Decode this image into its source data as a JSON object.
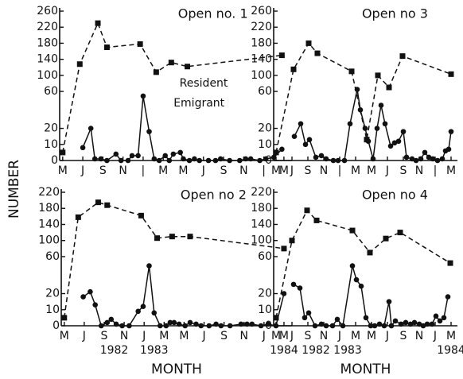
{
  "figure": {
    "y_label": "NUMBER",
    "x_label": "MONTH"
  },
  "chart_data": [
    {
      "type": "line",
      "title": "Open no. 1",
      "legend": "inside",
      "xlim": [
        -0.3,
        22.8
      ],
      "ylim": [
        0,
        260
      ],
      "yticks": [
        0,
        10,
        20,
        60,
        100,
        140,
        180,
        220,
        260
      ],
      "xticks": [
        {
          "value": 0,
          "label": "M"
        },
        {
          "value": 2,
          "label": "J"
        },
        {
          "value": 4,
          "label": "S"
        },
        {
          "value": 6,
          "label": "N"
        },
        {
          "value": 8,
          "label": "|"
        },
        {
          "value": 10,
          "label": "M"
        },
        {
          "value": 12,
          "label": "M"
        },
        {
          "value": 14,
          "label": "J"
        },
        {
          "value": 16,
          "label": "S"
        },
        {
          "value": 18,
          "label": "N"
        },
        {
          "value": 20,
          "label": "|"
        },
        {
          "value": 22,
          "label": "M"
        }
      ],
      "series": [
        {
          "name": "Resident",
          "color": "#111111",
          "style": "dashed",
          "marker": "square",
          "x": [
            0,
            1.7,
            3.5,
            4.4,
            7.7,
            9.3,
            10.8,
            12.4,
            21.8
          ],
          "values": [
            5,
            128,
            230,
            170,
            178,
            108,
            132,
            122,
            150
          ]
        },
        {
          "name": "Emigrant",
          "color": "#111111",
          "style": "solid",
          "marker": "circle",
          "x": [
            2.0,
            2.8,
            3.2,
            3.8,
            4.4,
            5.3,
            5.8,
            6.5,
            6.9,
            7.5,
            8.0,
            8.6,
            9.1,
            9.6,
            10.2,
            10.6,
            11.0,
            11.7,
            12.0,
            12.6,
            13.1,
            13.6,
            14.5,
            15.2,
            15.7,
            16.6,
            17.6,
            18.2,
            18.7,
            19.6,
            20.2,
            21.0,
            21.8
          ],
          "values": [
            8,
            20,
            1,
            1,
            0,
            4,
            0,
            0,
            3,
            3,
            55,
            18,
            1,
            0,
            3,
            0,
            4,
            5,
            1,
            0,
            1,
            0,
            0,
            0,
            1,
            0,
            0,
            1,
            1,
            0,
            1,
            2,
            7
          ]
        }
      ]
    },
    {
      "type": "line",
      "title": "Open no 3",
      "xlim": [
        -0.3,
        22.8
      ],
      "ylim": [
        0,
        260
      ],
      "yticks": [
        0,
        10,
        20,
        60,
        100,
        140,
        180,
        220,
        260
      ],
      "xticks": [
        {
          "value": 0,
          "label": "M"
        },
        {
          "value": 2,
          "label": "J"
        },
        {
          "value": 4,
          "label": "S"
        },
        {
          "value": 6,
          "label": "N"
        },
        {
          "value": 8,
          "label": "|"
        },
        {
          "value": 10,
          "label": "M"
        },
        {
          "value": 12,
          "label": "M"
        },
        {
          "value": 14,
          "label": "J"
        },
        {
          "value": 16,
          "label": "S"
        },
        {
          "value": 18,
          "label": "N"
        },
        {
          "value": 20,
          "label": "|"
        },
        {
          "value": 22,
          "label": "M"
        }
      ],
      "series": [
        {
          "color": "#111111",
          "style": "dashed",
          "marker": "square",
          "x": [
            0,
            2.2,
            4.1,
            5.2,
            9.5,
            11.4,
            12.8,
            14.2,
            15.9,
            22
          ],
          "values": [
            5,
            115,
            180,
            155,
            110,
            13,
            100,
            70,
            148,
            103
          ]
        },
        {
          "color": "#111111",
          "style": "solid",
          "marker": "circle",
          "x": [
            2.3,
            3.1,
            3.7,
            4.2,
            5.0,
            5.7,
            6.3,
            7.2,
            7.8,
            8.6,
            9.3,
            10.2,
            10.6,
            11.2,
            11.6,
            12.2,
            12.7,
            13.2,
            13.7,
            14.4,
            14.9,
            15.4,
            16.0,
            16.4,
            17.1,
            17.6,
            18.2,
            18.7,
            19.2,
            19.7,
            20.3,
            20.9,
            21.3,
            21.7,
            22
          ],
          "values": [
            15,
            25,
            10,
            13,
            2,
            3,
            1,
            0,
            0,
            0,
            25,
            65,
            40,
            20,
            12,
            1,
            20,
            45,
            25,
            9,
            11,
            12,
            18,
            2,
            1,
            0,
            1,
            5,
            2,
            1,
            0,
            1,
            6,
            7,
            18
          ]
        }
      ]
    },
    {
      "type": "line",
      "title": "Open no 2",
      "xlim": [
        -0.3,
        22.8
      ],
      "ylim": [
        0,
        220
      ],
      "yticks": [
        0,
        10,
        20,
        60,
        100,
        140,
        180,
        220
      ],
      "xticks": [
        {
          "value": 0,
          "label": "M"
        },
        {
          "value": 2,
          "label": "J"
        },
        {
          "value": 4,
          "label": "S"
        },
        {
          "value": 6,
          "label": "N"
        },
        {
          "value": 8,
          "label": "J"
        },
        {
          "value": 10,
          "label": "M"
        },
        {
          "value": 12,
          "label": "M"
        },
        {
          "value": 14,
          "label": "J"
        },
        {
          "value": 16,
          "label": "S"
        },
        {
          "value": 18,
          "label": "N"
        },
        {
          "value": 20,
          "label": "J"
        },
        {
          "value": 22,
          "label": "M"
        }
      ],
      "year_ticks": [
        {
          "value": 5,
          "label": "1982"
        },
        {
          "value": 9,
          "label": "1983"
        },
        {
          "value": 22,
          "label": "1984"
        }
      ],
      "series": [
        {
          "color": "#111111",
          "style": "dashed",
          "marker": "square",
          "x": [
            0,
            1.4,
            3.4,
            4.3,
            7.7,
            9.3,
            10.8,
            12.6,
            22
          ],
          "values": [
            5,
            158,
            195,
            188,
            162,
            106,
            110,
            110,
            80
          ]
        },
        {
          "color": "#111111",
          "style": "solid",
          "marker": "circle",
          "x": [
            1.9,
            2.6,
            3.1,
            3.7,
            4.3,
            4.7,
            5.2,
            5.8,
            6.5,
            7.4,
            7.9,
            8.5,
            9.0,
            9.6,
            10.2,
            10.6,
            11.0,
            11.5,
            12.1,
            12.6,
            13.2,
            13.7,
            14.5,
            15.2,
            15.7,
            16.6,
            17.7,
            18.3,
            18.8,
            19.7,
            20.4,
            21.2,
            22
          ],
          "values": [
            18,
            22,
            13,
            0,
            2,
            4,
            1,
            0,
            0,
            9,
            12,
            50,
            8,
            0,
            0,
            2,
            2,
            1,
            0,
            2,
            1,
            0,
            0,
            1,
            0,
            0,
            1,
            1,
            1,
            0,
            1,
            0,
            20
          ]
        }
      ]
    },
    {
      "type": "line",
      "title": "Open no 4",
      "xlim": [
        -0.3,
        22.8
      ],
      "ylim": [
        0,
        220
      ],
      "yticks": [
        0,
        10,
        20,
        60,
        100,
        140,
        180,
        220
      ],
      "xticks": [
        {
          "value": 0,
          "label": "M"
        },
        {
          "value": 2,
          "label": "J"
        },
        {
          "value": 4,
          "label": "S"
        },
        {
          "value": 6,
          "label": "N"
        },
        {
          "value": 8,
          "label": "J"
        },
        {
          "value": 10,
          "label": "M"
        },
        {
          "value": 12,
          "label": "M"
        },
        {
          "value": 14,
          "label": "J"
        },
        {
          "value": 16,
          "label": "S"
        },
        {
          "value": 18,
          "label": "N"
        },
        {
          "value": 20,
          "label": "J"
        },
        {
          "value": 22,
          "label": "M"
        }
      ],
      "year_ticks": [
        {
          "value": 5,
          "label": "1982"
        },
        {
          "value": 9,
          "label": "1983"
        },
        {
          "value": 22,
          "label": "1984"
        }
      ],
      "series": [
        {
          "color": "#111111",
          "style": "dashed",
          "marker": "square",
          "x": [
            0,
            2.0,
            3.9,
            5.1,
            9.6,
            11.8,
            13.8,
            15.6,
            21.9
          ],
          "values": [
            5,
            100,
            175,
            150,
            125,
            70,
            105,
            120,
            53
          ]
        },
        {
          "color": "#111111",
          "style": "solid",
          "marker": "circle",
          "x": [
            2.2,
            3.0,
            3.6,
            4.1,
            4.9,
            5.7,
            6.3,
            7.1,
            7.7,
            8.4,
            9.6,
            10.1,
            10.7,
            11.3,
            11.9,
            12.4,
            13.0,
            13.6,
            14.2,
            14.5,
            15.0,
            15.7,
            16.3,
            16.9,
            17.4,
            18.0,
            18.5,
            19.0,
            19.6,
            20.1,
            20.6,
            21.1,
            21.6
          ],
          "values": [
            30,
            26,
            5,
            8,
            0,
            1,
            0,
            0,
            4,
            0,
            50,
            35,
            28,
            5,
            0,
            0,
            1,
            0,
            15,
            0,
            3,
            1,
            2,
            1,
            2,
            1,
            0,
            1,
            1,
            6,
            3,
            5,
            18
          ]
        }
      ]
    }
  ]
}
